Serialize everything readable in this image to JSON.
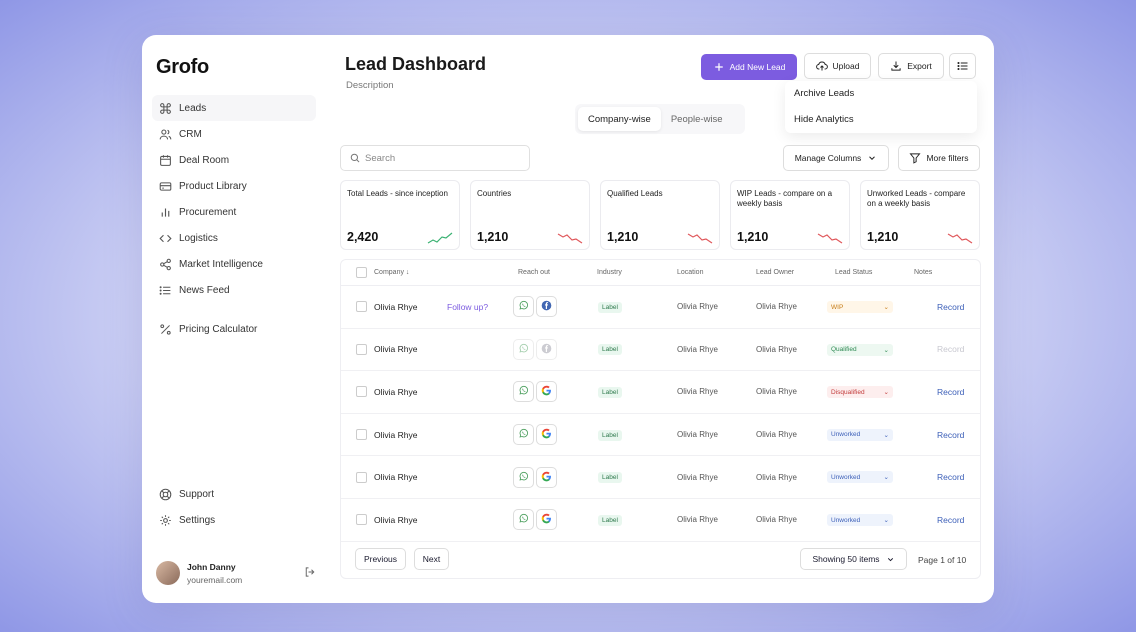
{
  "app": {
    "name": "Grofo"
  },
  "sidebar": {
    "items": [
      {
        "label": "Leads",
        "icon": "command-icon"
      },
      {
        "label": "CRM",
        "icon": "users-icon"
      },
      {
        "label": "Deal Room",
        "icon": "calendar-icon"
      },
      {
        "label": "Product Library",
        "icon": "box-icon"
      },
      {
        "label": "Procurement",
        "icon": "bar-chart-icon"
      },
      {
        "label": "Logistics",
        "icon": "code-icon"
      },
      {
        "label": "Market Intelligence",
        "icon": "share-icon"
      },
      {
        "label": "News Feed",
        "icon": "list-icon"
      },
      {
        "label": "Pricing Calculator",
        "icon": "percent-icon"
      }
    ],
    "bottom": [
      {
        "label": "Support",
        "icon": "lifebuoy-icon"
      },
      {
        "label": "Settings",
        "icon": "gear-icon"
      }
    ],
    "user": {
      "name": "John Danny",
      "email": "youremail.com"
    }
  },
  "header": {
    "title": "Lead Dashboard",
    "description": "Description",
    "add_label": "Add New Lead",
    "upload_label": "Upload",
    "export_label": "Export"
  },
  "menu": {
    "items": [
      "Archive Leads",
      "Hide Analytics"
    ]
  },
  "view_tabs": {
    "items": [
      "Company-wise",
      "People-wise"
    ],
    "active": "Company-wise"
  },
  "search": {
    "placeholder": "Search"
  },
  "toolbar": {
    "manage_columns": "Manage Columns",
    "more_filters": "More filters"
  },
  "stats": [
    {
      "label": "Total Leads - since inception",
      "value": "2,420",
      "trend": "up",
      "color": "#3bb273"
    },
    {
      "label": "Countries",
      "value": "1,210",
      "trend": "down",
      "color": "#e0575b"
    },
    {
      "label": "Qualified Leads",
      "value": "1,210",
      "trend": "down",
      "color": "#e0575b"
    },
    {
      "label": "WIP Leads - compare on a weekly basis",
      "value": "1,210",
      "trend": "down",
      "color": "#e0575b"
    },
    {
      "label": "Unworked Leads - compare on a weekly basis",
      "value": "1,210",
      "trend": "down",
      "color": "#e0575b"
    }
  ],
  "table": {
    "columns": [
      "Company",
      "Reach out",
      "Industry",
      "Location",
      "Lead Owner",
      "Lead Status",
      "Notes"
    ],
    "rows": [
      {
        "company": "Olivia Rhye",
        "follow": "Follow up?",
        "reach": [
          "whatsapp",
          "facebook"
        ],
        "reach_dim": false,
        "industry": "Label",
        "location": "Olivia Rhye",
        "owner": "Olivia Rhye",
        "status": "WIP",
        "status_kind": "wip",
        "notes": "Record",
        "notes_dim": false
      },
      {
        "company": "Olivia Rhye",
        "follow": "",
        "reach": [
          "whatsapp",
          "facebook"
        ],
        "reach_dim": true,
        "industry": "Label",
        "location": "Olivia Rhye",
        "owner": "Olivia Rhye",
        "status": "Qualified",
        "status_kind": "qualified",
        "notes": "Record",
        "notes_dim": true
      },
      {
        "company": "Olivia Rhye",
        "follow": "",
        "reach": [
          "whatsapp",
          "google"
        ],
        "reach_dim": false,
        "industry": "Label",
        "location": "Olivia Rhye",
        "owner": "Olivia Rhye",
        "status": "Disqualified",
        "status_kind": "disq",
        "notes": "Record",
        "notes_dim": false
      },
      {
        "company": "Olivia Rhye",
        "follow": "",
        "reach": [
          "whatsapp",
          "google"
        ],
        "reach_dim": false,
        "industry": "Label",
        "location": "Olivia Rhye",
        "owner": "Olivia Rhye",
        "status": "Unworked",
        "status_kind": "unworked",
        "notes": "Record",
        "notes_dim": false
      },
      {
        "company": "Olivia Rhye",
        "follow": "",
        "reach": [
          "whatsapp",
          "google"
        ],
        "reach_dim": false,
        "industry": "Label",
        "location": "Olivia Rhye",
        "owner": "Olivia Rhye",
        "status": "Unworked",
        "status_kind": "unworked",
        "notes": "Record",
        "notes_dim": false
      },
      {
        "company": "Olivia Rhye",
        "follow": "",
        "reach": [
          "whatsapp",
          "google"
        ],
        "reach_dim": false,
        "industry": "Label",
        "location": "Olivia Rhye",
        "owner": "Olivia Rhye",
        "status": "Unworked",
        "status_kind": "unworked",
        "notes": "Record",
        "notes_dim": false
      }
    ]
  },
  "pagination": {
    "previous": "Previous",
    "next": "Next",
    "page_size": "Showing 50 items",
    "page_info": "Page 1 of 10"
  },
  "colors": {
    "accent": "#7c5ce0"
  }
}
